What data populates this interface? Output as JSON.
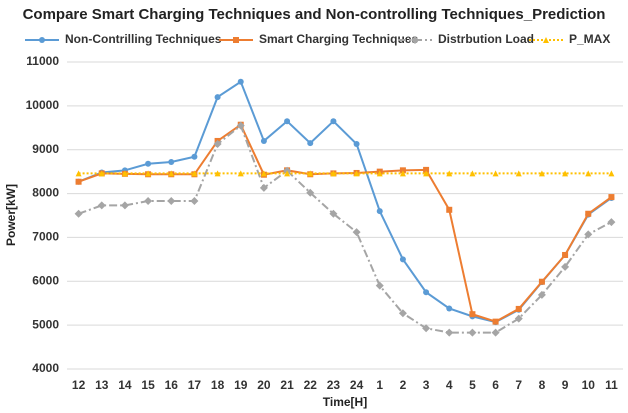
{
  "chart_data": {
    "type": "line",
    "title": "Compare Smart Charging Techniques and Non-controlling Techniques_Prediction",
    "x_label": "Time[H]",
    "y_label": "Power[kW]",
    "categories": [
      "12",
      "13",
      "14",
      "15",
      "16",
      "17",
      "18",
      "19",
      "20",
      "21",
      "22",
      "23",
      "24",
      "1",
      "2",
      "3",
      "4",
      "5",
      "6",
      "7",
      "8",
      "9",
      "10",
      "11"
    ],
    "series": [
      {
        "name": "Non-Contrilling Techniques",
        "color": "#5b9bd5",
        "marker": "circle",
        "dash": "solid",
        "values": [
          8270,
          8480,
          8530,
          8680,
          8720,
          8840,
          10200,
          10550,
          9200,
          9650,
          9150,
          9650,
          9130,
          7600,
          6500,
          5750,
          5380,
          5200,
          5070,
          5350,
          5980,
          6600,
          7520,
          7900
        ]
      },
      {
        "name": "Smart Charging Techniques",
        "color": "#ed7d31",
        "marker": "square",
        "dash": "solid",
        "values": [
          8270,
          8460,
          8450,
          8440,
          8440,
          8440,
          9200,
          9570,
          8430,
          8530,
          8440,
          8460,
          8470,
          8500,
          8530,
          8540,
          7630,
          5250,
          5080,
          5370,
          5990,
          6600,
          7540,
          7920
        ]
      },
      {
        "name": "Distrbution Load",
        "color": "#a5a5a5",
        "marker": "diamond",
        "dash": "dashdot",
        "values": [
          7540,
          7730,
          7730,
          7830,
          7830,
          7830,
          9130,
          9550,
          8130,
          8520,
          8020,
          7540,
          7120,
          5900,
          5270,
          4930,
          4830,
          4830,
          4830,
          5150,
          5690,
          6330,
          7070,
          7350
        ]
      },
      {
        "name": "P_MAX",
        "color": "#ffc000",
        "marker": "triangle",
        "dash": "dotted",
        "values": [
          8460,
          8460,
          8460,
          8460,
          8460,
          8460,
          8460,
          8460,
          8460,
          8460,
          8460,
          8460,
          8460,
          8460,
          8460,
          8460,
          8460,
          8460,
          8460,
          8460,
          8460,
          8460,
          8460,
          8460
        ]
      }
    ],
    "ylim": [
      4000,
      11000
    ],
    "yticks": [
      4000,
      5000,
      6000,
      7000,
      8000,
      9000,
      10000,
      11000
    ],
    "grid": true
  }
}
